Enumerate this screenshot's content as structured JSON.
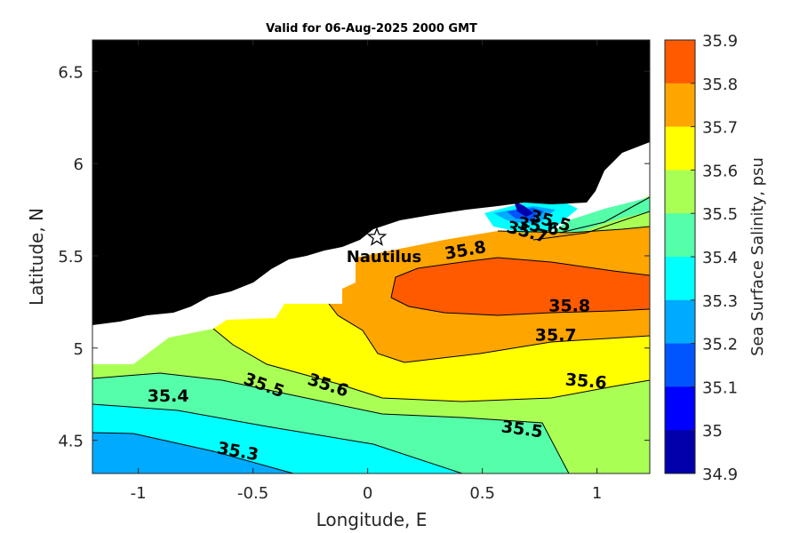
{
  "title": "Valid for 06-Aug-2025 2000 GMT",
  "map": {
    "xlabel": "Longitude, E",
    "ylabel": "Latitude, N",
    "x_ticks": [
      "-1",
      "-0.5",
      "0",
      "0.5",
      "1"
    ],
    "y_ticks": [
      "4.5",
      "5",
      "5.5",
      "6",
      "6.5"
    ],
    "xlim": [
      -1.2,
      1.23
    ],
    "ylim": [
      4.32,
      6.67
    ],
    "land_color": "#000000",
    "nodata_color": "#ffffff",
    "station": {
      "name": "Nautilus",
      "lon": 0.04,
      "lat": 5.6,
      "marker": "star-icon"
    }
  },
  "contour_labels": [
    {
      "text": "35.8",
      "lon": 0.43,
      "lat": 5.5,
      "rotate": -10
    },
    {
      "text": "35.8",
      "lon": 0.88,
      "lat": 5.2,
      "rotate": 0
    },
    {
      "text": "35.7",
      "lon": 0.82,
      "lat": 5.04,
      "rotate": 0
    },
    {
      "text": "35.6",
      "lon": 0.95,
      "lat": 4.79,
      "rotate": 5
    },
    {
      "text": "35.5",
      "lon": 0.67,
      "lat": 4.53,
      "rotate": 8
    },
    {
      "text": "35.4",
      "lon": -0.87,
      "lat": 4.71,
      "rotate": 0
    },
    {
      "text": "35.5",
      "lon": -0.46,
      "lat": 4.77,
      "rotate": 20
    },
    {
      "text": "35.6",
      "lon": -0.18,
      "lat": 4.77,
      "rotate": 18
    },
    {
      "text": "35.3",
      "lon": -0.57,
      "lat": 4.41,
      "rotate": 10
    },
    {
      "text": "35.7",
      "lon": 0.69,
      "lat": 5.6,
      "rotate": 15
    },
    {
      "text": "35.6",
      "lon": 0.74,
      "lat": 5.63,
      "rotate": 10
    },
    {
      "text": "35.5",
      "lon": 0.79,
      "lat": 5.66,
      "rotate": 15
    }
  ],
  "colorbar": {
    "label": "Sea Surface Salinity, psu",
    "levels": [
      "35.9",
      "35.8",
      "35.7",
      "35.6",
      "35.5",
      "35.4",
      "35.3",
      "35.2",
      "35.1",
      "35",
      "34.9"
    ],
    "colors": [
      "#ff5a00",
      "#ffa500",
      "#ffff00",
      "#aaff55",
      "#55ffaa",
      "#00ffff",
      "#00aaff",
      "#0055ff",
      "#0000ff",
      "#0000aa"
    ]
  }
}
